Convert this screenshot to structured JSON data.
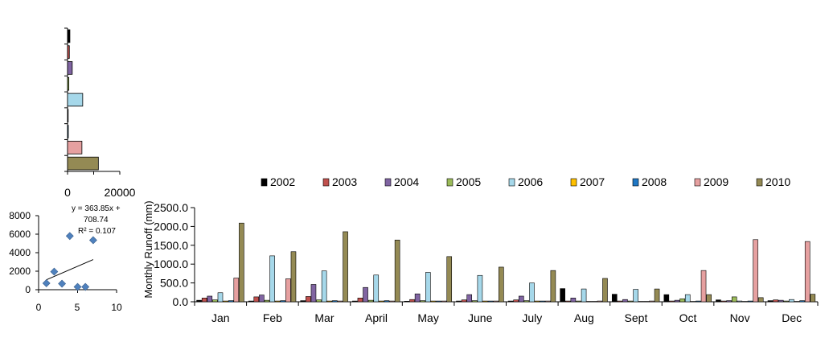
{
  "colors": {
    "2002": "#000000",
    "2003": "#c0504d",
    "2004": "#8064a2",
    "2005": "#9bbb59",
    "2006": "#a6d8ea",
    "2007": "#ffc000",
    "2008": "#1f77c4",
    "2009": "#e6a0a0",
    "2010": "#948a54",
    "scatter_marker": "#4f81bd",
    "trendline": "#000000"
  },
  "chart_data": [
    {
      "id": "monthly-runoff",
      "type": "bar",
      "title": "",
      "xlabel": "",
      "ylabel": "Monthly  Runoff (mm)",
      "ylim": [
        0,
        2500
      ],
      "yticks": [
        "0.0",
        "500.0",
        "1000.0",
        "1500.0",
        "2000.0",
        "2500.0"
      ],
      "grid": false,
      "legend": "top",
      "categories": [
        "Jan",
        "Feb",
        "Mar",
        "April",
        "May",
        "June",
        "July",
        "Aug",
        "Sept",
        "Oct",
        "Nov",
        "Dec"
      ],
      "series": [
        {
          "name": "2002",
          "values": [
            40,
            20,
            30,
            20,
            15,
            20,
            20,
            350,
            200,
            190,
            50,
            30
          ]
        },
        {
          "name": "2003",
          "values": [
            100,
            130,
            140,
            100,
            60,
            50,
            50,
            20,
            20,
            20,
            20,
            50
          ]
        },
        {
          "name": "2004",
          "values": [
            150,
            180,
            460,
            380,
            210,
            190,
            150,
            100,
            60,
            40,
            30,
            40
          ]
        },
        {
          "name": "2005",
          "values": [
            50,
            40,
            50,
            40,
            30,
            30,
            30,
            20,
            20,
            80,
            130,
            20
          ]
        },
        {
          "name": "2006",
          "values": [
            240,
            1220,
            820,
            710,
            780,
            700,
            500,
            340,
            330,
            190,
            20,
            60
          ]
        },
        {
          "name": "2007",
          "values": [
            20,
            20,
            20,
            20,
            20,
            20,
            20,
            10,
            10,
            10,
            10,
            10
          ]
        },
        {
          "name": "2008",
          "values": [
            30,
            30,
            30,
            30,
            20,
            20,
            20,
            10,
            10,
            20,
            20,
            30
          ]
        },
        {
          "name": "2009",
          "values": [
            630,
            610,
            20,
            20,
            20,
            20,
            20,
            20,
            20,
            830,
            1650,
            1600
          ]
        },
        {
          "name": "2010",
          "values": [
            2090,
            1330,
            1860,
            1640,
            1200,
            920,
            830,
            620,
            340,
            190,
            110,
            200
          ]
        }
      ]
    },
    {
      "id": "annual-horizontal-bars",
      "type": "bar",
      "orientation": "horizontal",
      "xlim": [
        0,
        20000
      ],
      "xticks": [
        "0",
        "20000"
      ],
      "categories": [
        "2002",
        "2003",
        "2004",
        "2005",
        "2006",
        "2007",
        "2008",
        "2009",
        "2010"
      ],
      "values": [
        900,
        700,
        1800,
        500,
        5800,
        200,
        300,
        5500,
        11800
      ]
    },
    {
      "id": "scatter-trend",
      "type": "scatter",
      "xlim": [
        0,
        10
      ],
      "ylim": [
        0,
        8000
      ],
      "xticks": [
        "0",
        "5",
        "10"
      ],
      "yticks": [
        "0",
        "2000",
        "4000",
        "6000",
        "8000"
      ],
      "points": [
        [
          1,
          700
        ],
        [
          2,
          1950
        ],
        [
          3,
          650
        ],
        [
          4,
          5800
        ],
        [
          5,
          300
        ],
        [
          6,
          300
        ],
        [
          7,
          5350
        ]
      ],
      "trendline": {
        "slope": 363.85,
        "intercept": 708.74,
        "x_range": [
          1,
          7
        ]
      },
      "equation_line1": "y = 363.85x +",
      "equation_line2": "708.74",
      "r_squared": "R² = 0.107"
    }
  ]
}
